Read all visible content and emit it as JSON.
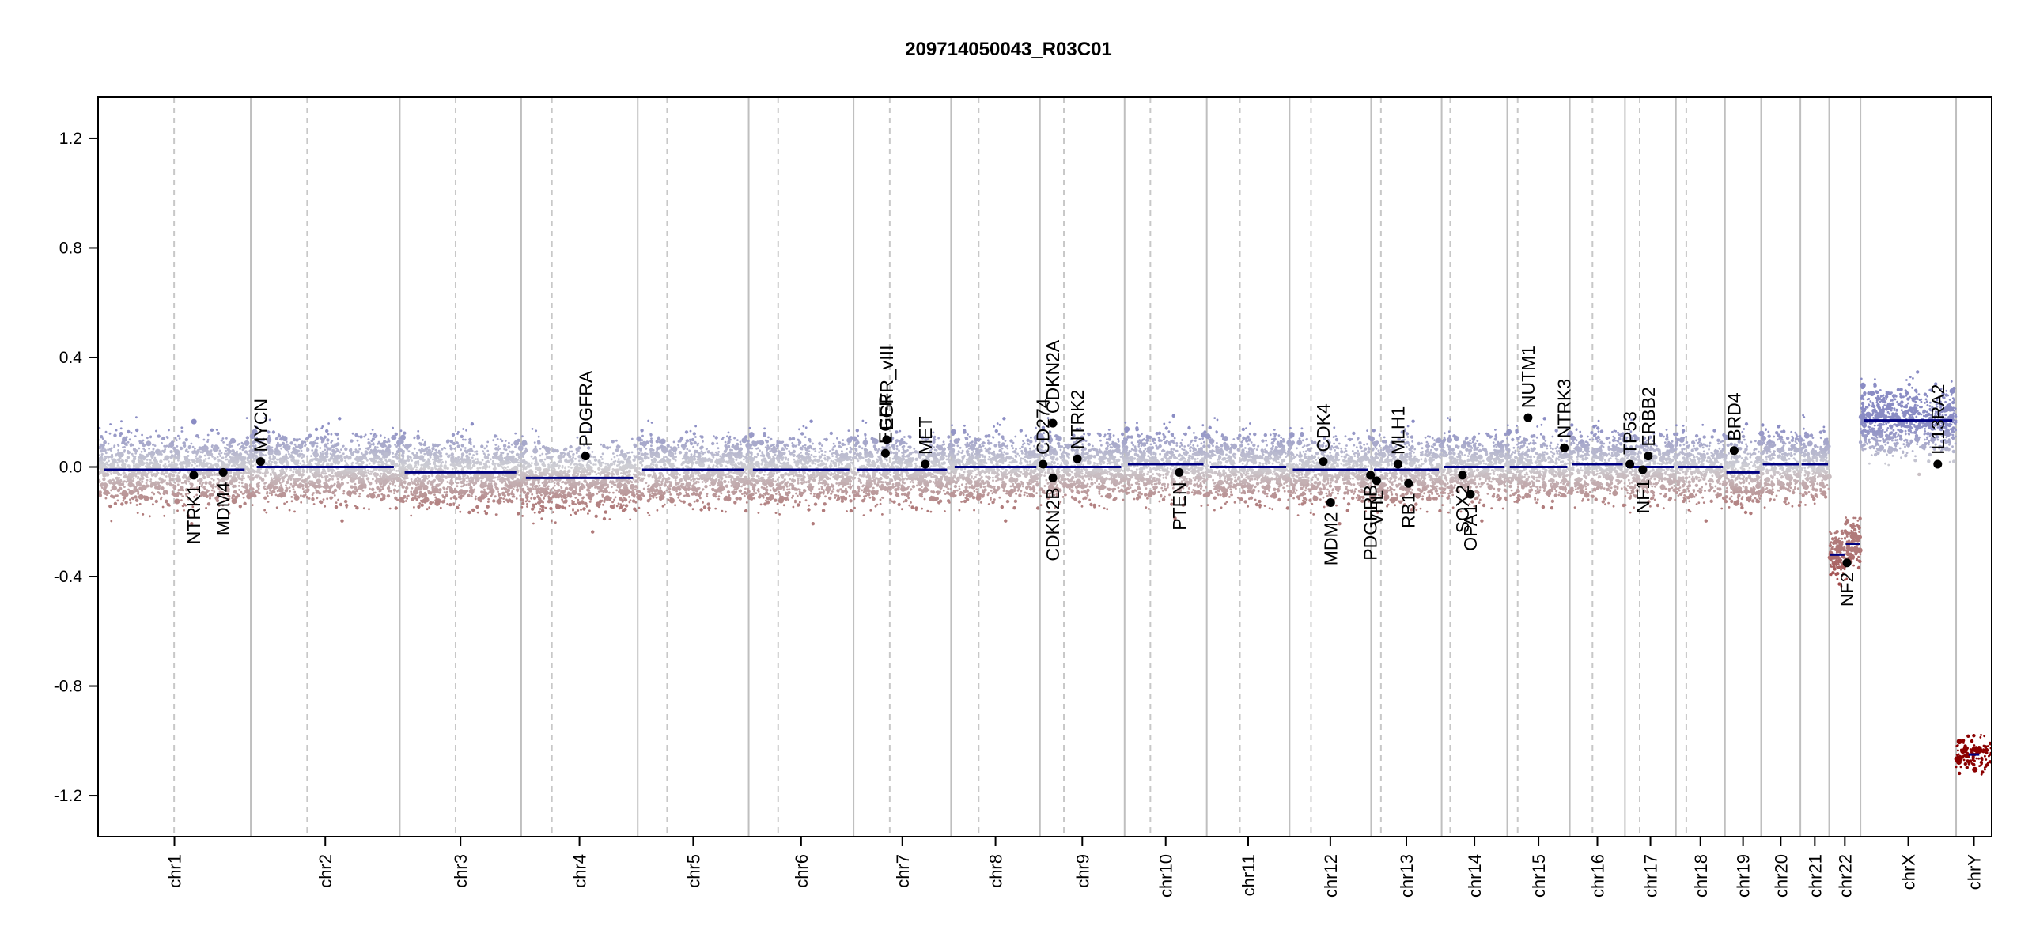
{
  "chart_data": {
    "type": "scatter",
    "title": "209714050043_R03C01",
    "xlabel": "",
    "ylabel": "",
    "ylim": [
      -1.35,
      1.35
    ],
    "yticks": [
      -1.2,
      -0.8,
      -0.4,
      0.0,
      0.4,
      0.8,
      1.2
    ],
    "ytick_labels": [
      "-1.2",
      "-0.8",
      "-0.4",
      "0.0",
      "0.4",
      "0.8",
      "1.2"
    ],
    "grid": false,
    "chromosomes": [
      {
        "name": "chr1",
        "start": 0,
        "end": 249
      },
      {
        "name": "chr2",
        "start": 249,
        "end": 492
      },
      {
        "name": "chr3",
        "start": 492,
        "end": 690
      },
      {
        "name": "chr4",
        "start": 690,
        "end": 880
      },
      {
        "name": "chr5",
        "start": 880,
        "end": 1061
      },
      {
        "name": "chr6",
        "start": 1061,
        "end": 1232
      },
      {
        "name": "chr7",
        "start": 1232,
        "end": 1391
      },
      {
        "name": "chr8",
        "start": 1391,
        "end": 1536
      },
      {
        "name": "chr9",
        "start": 1536,
        "end": 1674
      },
      {
        "name": "chr10",
        "start": 1674,
        "end": 1808
      },
      {
        "name": "chr11",
        "start": 1808,
        "end": 1943
      },
      {
        "name": "chr12",
        "start": 1943,
        "end": 2076
      },
      {
        "name": "chr13",
        "start": 2076,
        "end": 2191
      },
      {
        "name": "chr14",
        "start": 2191,
        "end": 2298
      },
      {
        "name": "chr15",
        "start": 2298,
        "end": 2400
      },
      {
        "name": "chr16",
        "start": 2400,
        "end": 2490
      },
      {
        "name": "chr17",
        "start": 2490,
        "end": 2573
      },
      {
        "name": "chr18",
        "start": 2573,
        "end": 2653
      },
      {
        "name": "chr19",
        "start": 2653,
        "end": 2712
      },
      {
        "name": "chr20",
        "start": 2712,
        "end": 2776
      },
      {
        "name": "chr21",
        "start": 2776,
        "end": 2823
      },
      {
        "name": "chr22",
        "start": 2823,
        "end": 2874
      },
      {
        "name": "chrX",
        "start": 2874,
        "end": 3030
      },
      {
        "name": "chrY",
        "start": 3030,
        "end": 3088
      }
    ],
    "centromeres": [
      124,
      341,
      583,
      740,
      928,
      1109,
      1291,
      1436,
      1575,
      1716,
      1862,
      1978,
      2092,
      2205,
      2315,
      2437,
      2514,
      2590
    ],
    "segments": [
      {
        "chr": "chr1",
        "start": 0,
        "end": 249,
        "value": -0.01
      },
      {
        "chr": "chr2",
        "start": 249,
        "end": 492,
        "value": 0.0
      },
      {
        "chr": "chr3",
        "start": 492,
        "end": 690,
        "value": -0.02
      },
      {
        "chr": "chr4",
        "start": 690,
        "end": 880,
        "value": -0.04
      },
      {
        "chr": "chr5",
        "start": 880,
        "end": 1061,
        "value": -0.01
      },
      {
        "chr": "chr6",
        "start": 1061,
        "end": 1232,
        "value": -0.01
      },
      {
        "chr": "chr7",
        "start": 1232,
        "end": 1391,
        "value": -0.01
      },
      {
        "chr": "chr8",
        "start": 1391,
        "end": 1536,
        "value": 0.0
      },
      {
        "chr": "chr9",
        "start": 1536,
        "end": 1674,
        "value": 0.0
      },
      {
        "chr": "chr10",
        "start": 1674,
        "end": 1808,
        "value": 0.01
      },
      {
        "chr": "chr11",
        "start": 1808,
        "end": 1943,
        "value": 0.0
      },
      {
        "chr": "chr12",
        "start": 1943,
        "end": 2076,
        "value": -0.01
      },
      {
        "chr": "chr13",
        "start": 2076,
        "end": 2191,
        "value": -0.01
      },
      {
        "chr": "chr14",
        "start": 2191,
        "end": 2298,
        "value": 0.0
      },
      {
        "chr": "chr15",
        "start": 2298,
        "end": 2400,
        "value": 0.0
      },
      {
        "chr": "chr16",
        "start": 2400,
        "end": 2490,
        "value": 0.01
      },
      {
        "chr": "chr17",
        "start": 2490,
        "end": 2573,
        "value": 0.0
      },
      {
        "chr": "chr18",
        "start": 2573,
        "end": 2653,
        "value": 0.0
      },
      {
        "chr": "chr19",
        "start": 2653,
        "end": 2712,
        "value": -0.02
      },
      {
        "chr": "chr20",
        "start": 2712,
        "end": 2776,
        "value": 0.01
      },
      {
        "chr": "chr21",
        "start": 2776,
        "end": 2823,
        "value": 0.01
      },
      {
        "chr": "chr22",
        "start": 2823,
        "end": 2849,
        "value": -0.32
      },
      {
        "chr": "chr22",
        "start": 2849,
        "end": 2874,
        "value": -0.28
      },
      {
        "chr": "chrX",
        "start": 2874,
        "end": 3030,
        "value": 0.17
      },
      {
        "chr": "chrY",
        "start": 3030,
        "end": 3088,
        "value": -1.05
      }
    ],
    "genes": [
      {
        "name": "NTRK1",
        "x": 156,
        "value": -0.03,
        "label_pos": "below"
      },
      {
        "name": "MDM4",
        "x": 204,
        "value": -0.02,
        "label_pos": "below"
      },
      {
        "name": "MYCN",
        "x": 265,
        "value": 0.02,
        "label_pos": "above"
      },
      {
        "name": "PDGFRA",
        "x": 795,
        "value": 0.04,
        "label_pos": "above"
      },
      {
        "name": "EGFR_vIII",
        "x": 1286,
        "value": 0.1,
        "label_pos": "above"
      },
      {
        "name": "EGFR",
        "x": 1284,
        "value": 0.05,
        "label_pos": "above"
      },
      {
        "name": "MET",
        "x": 1349,
        "value": 0.01,
        "label_pos": "above"
      },
      {
        "name": "PDGFRB",
        "x": 2075,
        "value": -0.03,
        "label_pos": "below"
      },
      {
        "name": "VHL",
        "x": 2085,
        "value": -0.05,
        "label_pos": "below"
      },
      {
        "name": "MLH1",
        "x": 2120,
        "value": 0.01,
        "label_pos": "above"
      },
      {
        "name": "SOX2",
        "x": 2225,
        "value": -0.03,
        "label_pos": "below"
      },
      {
        "name": "OPA1",
        "x": 2238,
        "value": -0.1,
        "label_pos": "below"
      },
      {
        "name": "CD274",
        "x": 1541,
        "value": 0.01,
        "label_pos": "above"
      },
      {
        "name": "CDKN2A",
        "x": 1557,
        "value": 0.16,
        "label_pos": "above"
      },
      {
        "name": "CDKN2B",
        "x": 1557,
        "value": -0.04,
        "label_pos": "below"
      },
      {
        "name": "NTRK2",
        "x": 1597,
        "value": 0.03,
        "label_pos": "above"
      },
      {
        "name": "PTEN",
        "x": 1763,
        "value": -0.02,
        "label_pos": "below"
      },
      {
        "name": "CDK4",
        "x": 1998,
        "value": 0.02,
        "label_pos": "above"
      },
      {
        "name": "MDM2",
        "x": 2010,
        "value": -0.13,
        "label_pos": "below"
      },
      {
        "name": "RB1",
        "x": 2137,
        "value": -0.06,
        "label_pos": "below"
      },
      {
        "name": "NUTM1",
        "x": 2332,
        "value": 0.18,
        "label_pos": "above"
      },
      {
        "name": "NTRK3",
        "x": 2391,
        "value": 0.07,
        "label_pos": "above"
      },
      {
        "name": "TP53",
        "x": 2498,
        "value": 0.01,
        "label_pos": "above"
      },
      {
        "name": "NF1",
        "x": 2519,
        "value": -0.01,
        "label_pos": "below"
      },
      {
        "name": "ERBB2",
        "x": 2528,
        "value": 0.04,
        "label_pos": "above"
      },
      {
        "name": "BRD4",
        "x": 2668,
        "value": 0.06,
        "label_pos": "above"
      },
      {
        "name": "NF2",
        "x": 2852,
        "value": -0.35,
        "label_pos": "below"
      },
      {
        "name": "IL13RA2",
        "x": 3000,
        "value": 0.01,
        "label_pos": "above"
      }
    ],
    "colors": {
      "segment": "#000080",
      "gain": "#8a8cc4",
      "loss": "#b07a7a",
      "strong_loss": "#8b0000",
      "neutral": "#cfcfd4",
      "gene_point": "#000000",
      "chr_boundary": "#bfbfbf",
      "centromere": "#c8c8c8"
    }
  }
}
